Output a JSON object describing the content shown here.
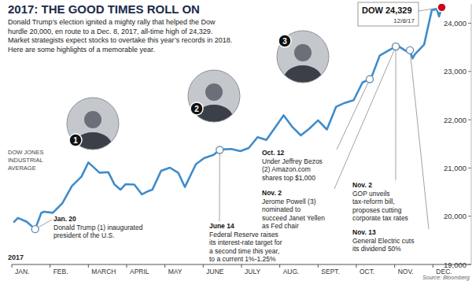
{
  "chart_data": {
    "type": "line",
    "title": "2017: THE GOOD TIMES ROLL ON",
    "subtitle": [
      "Donald Trump’s election ignited a mighty rally that helped the Dow",
      "hurdle 20,000, en route to a Dec. 8, 2017, all-time high of 24,329.",
      "Market strategists expect stocks to overtake this year’s records in 2018.",
      "Here are some highlights of a memorable year."
    ],
    "y_label": [
      "DOW JONES",
      "INDUSTRIAL",
      "AVERAGE"
    ],
    "x_label": "2017",
    "source": "Source: Bloomberg",
    "x": [
      0.06,
      0.16,
      0.39,
      0.61,
      0.77,
      0.84,
      1.07,
      1.32,
      1.57,
      1.82,
      2.0,
      2.29,
      2.52,
      2.68,
      2.84,
      2.97,
      3.2,
      3.4,
      3.57,
      3.67,
      3.9,
      4.13,
      4.35,
      4.52,
      4.81,
      5.03,
      5.27,
      5.43,
      5.5,
      5.73,
      5.97,
      6.19,
      6.42,
      6.65,
      6.87,
      7.1,
      7.32,
      7.55,
      7.77,
      8.0,
      8.23,
      8.47,
      8.7,
      8.93,
      9.16,
      9.35,
      9.39,
      9.61,
      9.84,
      10.03,
      10.07,
      10.3,
      10.4,
      10.47,
      10.53,
      10.77,
      10.97,
      11.1,
      11.16,
      11.23
    ],
    "series": [
      {
        "color": "#3f8ccb",
        "values": [
          19882,
          19964,
          19885,
          19732,
          20068,
          20093,
          20071,
          20269,
          20624,
          20821,
          21115,
          20903,
          20914,
          20661,
          20550,
          20663,
          20656,
          20453,
          20523,
          20548,
          20941,
          21007,
          20897,
          20606,
          21080,
          21206,
          21272,
          21374,
          21384,
          21395,
          21350,
          21414,
          21638,
          21580,
          21830,
          22092,
          21858,
          21675,
          21814,
          21988,
          21798,
          22268,
          22350,
          22405,
          22773,
          22841,
          22871,
          23329,
          23434,
          23517,
          23539,
          23422,
          23440,
          23271,
          23358,
          23558,
          24272,
          24290,
          24140,
          24329
        ]
      }
    ],
    "xlim": [
      0,
      12
    ],
    "xticks": [
      {
        "value": 0,
        "label": "JAN."
      },
      {
        "value": 1,
        "label": "FEB."
      },
      {
        "value": 2,
        "label": "MARCH"
      },
      {
        "value": 3,
        "label": "APRIL"
      },
      {
        "value": 4,
        "label": "MAY"
      },
      {
        "value": 5,
        "label": "JUNE"
      },
      {
        "value": 6,
        "label": "JULY"
      },
      {
        "value": 7,
        "label": "AUG."
      },
      {
        "value": 8,
        "label": "SEPT."
      },
      {
        "value": 9,
        "label": "OCT."
      },
      {
        "value": 10,
        "label": "NOV."
      },
      {
        "value": 11,
        "label": "DEC."
      }
    ],
    "ylim": [
      19000,
      24400
    ],
    "yticks": [
      {
        "value": 19000,
        "label": "19,000"
      },
      {
        "value": 20000,
        "label": "20,000"
      },
      {
        "value": 21000,
        "label": "21,000"
      },
      {
        "value": 22000,
        "label": "22,000"
      },
      {
        "value": 23000,
        "label": "23,000"
      },
      {
        "value": 24000,
        "label": "24,000"
      }
    ],
    "grid": false,
    "callout": {
      "title": "DOW 24,329",
      "date": "12/8/17"
    },
    "photos": [
      {
        "label": "1"
      },
      {
        "label": "2"
      },
      {
        "label": "3"
      }
    ],
    "annotations": [
      {
        "x": 0.61,
        "label": "Jan. 20",
        "lines": [
          "Donald Trump (1) inaugurated",
          "president of the U.S."
        ]
      },
      {
        "x": 5.43,
        "label": "June 14",
        "lines": [
          "Federal Reserve raises",
          "its interest-rate target for",
          "a second time this year,",
          "to a current 1%-1.25%"
        ]
      },
      {
        "x": 9.35,
        "label": "Oct. 12",
        "lines": [
          "Under Jeffrey Bezos",
          "(2) Amazon.com",
          "shares top $1,000"
        ]
      },
      {
        "x": 10.03,
        "label": "Nov. 2",
        "lines": [
          "Jerome Powell (3)",
          "nominated to",
          "succeed Janet Yellen",
          "as Fed chair"
        ]
      },
      {
        "x": 10.03,
        "label": "Nov. 2",
        "lines": [
          "GOP unveils",
          "tax-reform bill,",
          "proposes cutting",
          "corporate tax rates"
        ]
      },
      {
        "x": 10.4,
        "label": "Nov. 13",
        "lines": [
          "General Electric cuts",
          "its dividend 50%"
        ]
      }
    ]
  }
}
